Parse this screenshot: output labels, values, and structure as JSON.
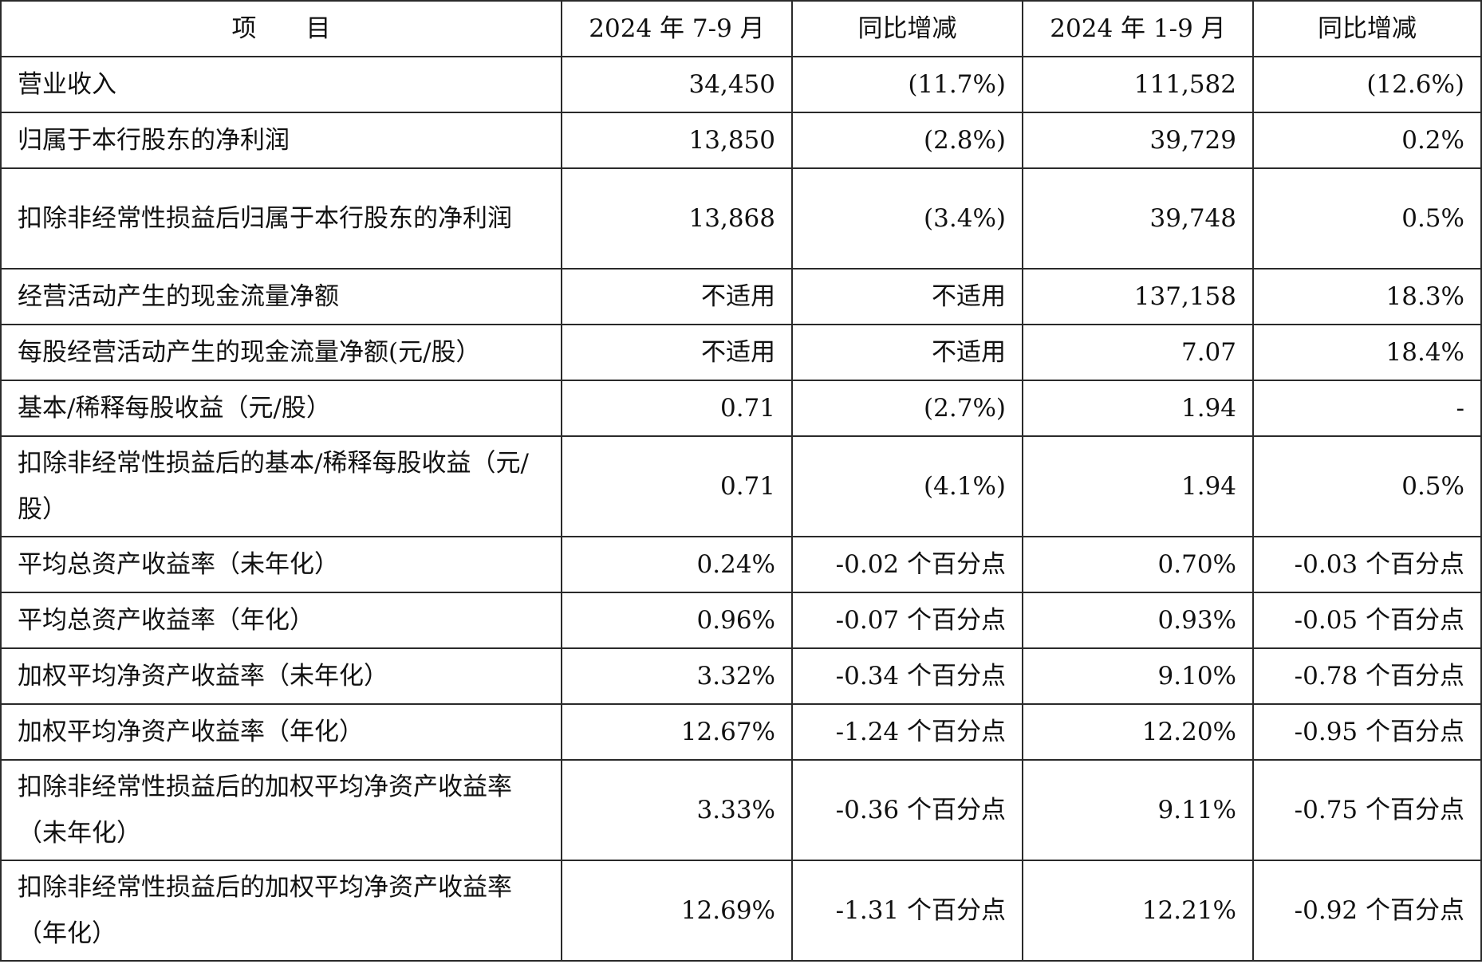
{
  "table": {
    "headers": [
      "项　　目",
      "2024 年 7-9 月",
      "同比增减",
      "2024 年 1-9 月",
      "同比增减"
    ],
    "rows": [
      [
        "营业收入",
        "34,450",
        "(11.7%)",
        "111,582",
        "(12.6%)"
      ],
      [
        "归属于本行股东的净利润",
        "13,850",
        "(2.8%)",
        "39,729",
        "0.2%"
      ],
      [
        "扣除非经常性损益后归属于本行股东的净利润",
        "13,868",
        "(3.4%)",
        "39,748",
        "0.5%"
      ],
      [
        "经营活动产生的现金流量净额",
        "不适用",
        "不适用",
        "137,158",
        "18.3%"
      ],
      [
        "每股经营活动产生的现金流量净额(元/股）",
        "不适用",
        "不适用",
        "7.07",
        "18.4%"
      ],
      [
        "基本/稀释每股收益（元/股）",
        "0.71",
        "(2.7%)",
        "1.94",
        "-"
      ],
      [
        "扣除非经常性损益后的基本/稀释每股收益（元/股）",
        "0.71",
        "(4.1%)",
        "1.94",
        "0.5%"
      ],
      [
        "平均总资产收益率（未年化）",
        "0.24%",
        "-0.02 个百分点",
        "0.70%",
        "-0.03 个百分点"
      ],
      [
        "平均总资产收益率（年化）",
        "0.96%",
        "-0.07 个百分点",
        "0.93%",
        "-0.05 个百分点"
      ],
      [
        "加权平均净资产收益率（未年化）",
        "3.32%",
        "-0.34 个百分点",
        "9.10%",
        "-0.78 个百分点"
      ],
      [
        "加权平均净资产收益率（年化）",
        "12.67%",
        "-1.24 个百分点",
        "12.20%",
        "-0.95 个百分点"
      ],
      [
        "扣除非经常性损益后的加权平均净资产收益率（未年化）",
        "3.33%",
        "-0.36 个百分点",
        "9.11%",
        "-0.75 个百分点"
      ],
      [
        "扣除非经常性损益后的加权平均净资产收益率（年化）",
        "12.69%",
        "-1.31 个百分点",
        "12.21%",
        "-0.92 个百分点"
      ]
    ]
  }
}
